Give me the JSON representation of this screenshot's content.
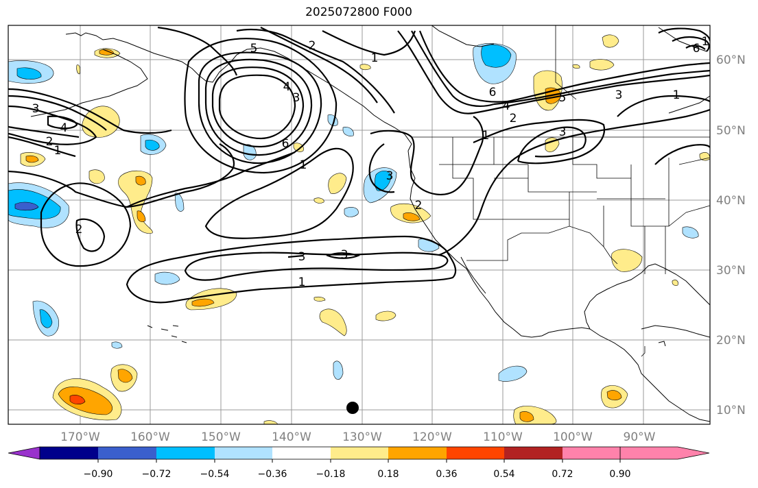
{
  "title": "2025072800 F000",
  "lon_labels": [
    "170°W",
    "160°W",
    "150°W",
    "140°W",
    "130°W",
    "120°W",
    "110°W",
    "100°W",
    "90°W"
  ],
  "lat_labels": [
    "60°N",
    "50°N",
    "40°N",
    "30°N",
    "20°N",
    "10°N"
  ],
  "colorbar": {
    "colors": [
      "#9932cc",
      "#00008b",
      "#3a5fcd",
      "#00bfff",
      "#b0e2ff",
      "#ffffff",
      "#ffec8b",
      "#ffa500",
      "#ff4500",
      "#b22222",
      "#ff82ab"
    ],
    "ticks": [
      "−0.90",
      "−0.72",
      "−0.54",
      "−0.36",
      "−0.18",
      "0.18",
      "0.36",
      "0.54",
      "0.72",
      "0.90"
    ]
  },
  "contour_labels": [
    "5",
    "2",
    "1",
    "4",
    "3",
    "6",
    "1",
    "6",
    "4",
    "2",
    "5",
    "3",
    "1",
    "3",
    "4",
    "2",
    "1",
    "1",
    "3",
    "2",
    "2",
    "3",
    "3",
    "1",
    "1",
    "3",
    "6"
  ]
}
